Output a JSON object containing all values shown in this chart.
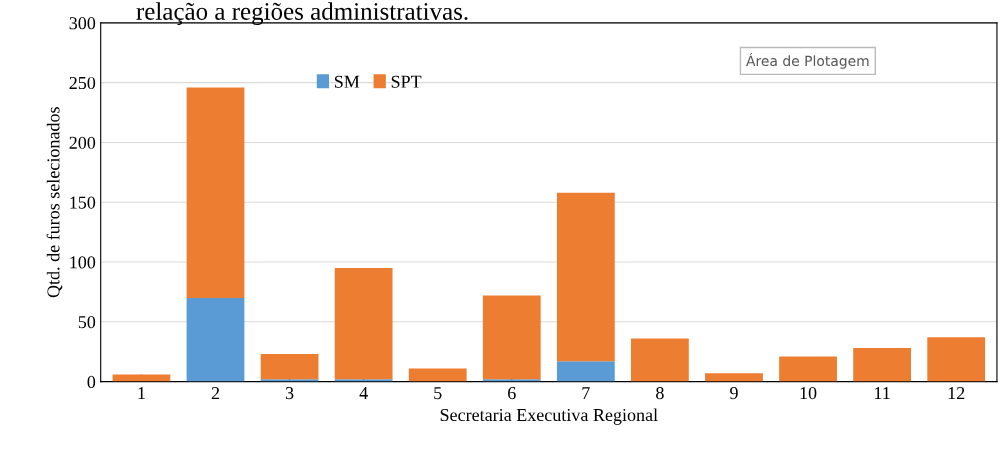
{
  "chart_data": {
    "type": "bar",
    "stacked": true,
    "title": "relação a regiões administrativas.",
    "xlabel": "Secretaria Executiva Regional",
    "ylabel": "Qtd. de furos selecionados",
    "categories": [
      "1",
      "2",
      "3",
      "4",
      "5",
      "6",
      "7",
      "8",
      "9",
      "10",
      "11",
      "12"
    ],
    "series": [
      {
        "name": "SM",
        "color": "#5b9bd5",
        "values": [
          0,
          70,
          2,
          2,
          0,
          2,
          17,
          0,
          0,
          0,
          0,
          0
        ]
      },
      {
        "name": "SPT",
        "color": "#ed7d31",
        "values": [
          6,
          176,
          21,
          93,
          11,
          70,
          141,
          36,
          7,
          21,
          28,
          37
        ]
      }
    ],
    "ylim": [
      0,
      300
    ],
    "yticks": [
      0,
      50,
      100,
      150,
      200,
      250,
      300
    ],
    "grid": "y",
    "legend": "top",
    "annotations": [
      "Área de Plotagem"
    ]
  }
}
